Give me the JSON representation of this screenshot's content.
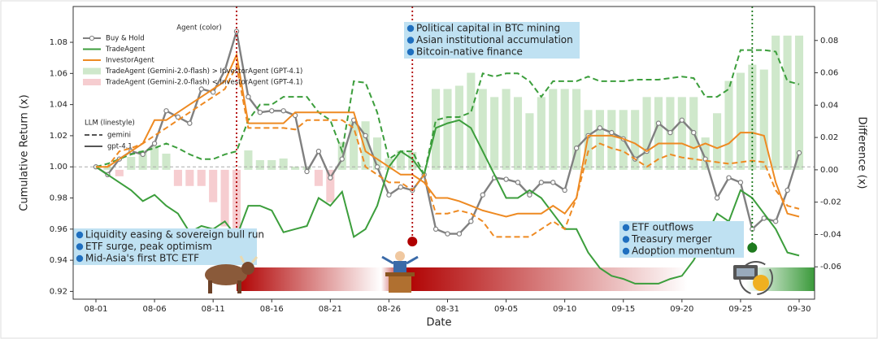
{
  "chart_data": {
    "type": "line",
    "x_label": "Date",
    "y_label": "Cumulative Return (x)",
    "y2_label": "Difference (x)",
    "x": [
      "08-01",
      "08-02",
      "08-03",
      "08-04",
      "08-05",
      "08-06",
      "08-07",
      "08-08",
      "08-09",
      "08-10",
      "08-11",
      "08-12",
      "08-13",
      "08-14",
      "08-15",
      "08-16",
      "08-17",
      "08-18",
      "08-19",
      "08-20",
      "08-21",
      "08-22",
      "08-23",
      "08-24",
      "08-25",
      "08-26",
      "08-27",
      "08-28",
      "08-29",
      "08-30",
      "08-31",
      "09-01",
      "09-02",
      "09-03",
      "09-04",
      "09-05",
      "09-06",
      "09-07",
      "09-08",
      "09-09",
      "09-10",
      "09-11",
      "09-12",
      "09-13",
      "09-14",
      "09-15",
      "09-16",
      "09-17",
      "09-18",
      "09-19",
      "09-20",
      "09-21",
      "09-22",
      "09-23",
      "09-24",
      "09-25",
      "09-26",
      "09-27",
      "09-28",
      "09-29",
      "09-30"
    ],
    "xticks": [
      "08-01",
      "08-06",
      "08-11",
      "08-16",
      "08-21",
      "08-26",
      "08-31",
      "09-05",
      "09-10",
      "09-15",
      "09-20",
      "09-25",
      "09-30"
    ],
    "ylim": [
      0.915,
      1.103
    ],
    "yticks": [
      0.92,
      0.94,
      0.96,
      0.98,
      {
        "value": 1,
        "label": "1.00"
      },
      1.02,
      1.04,
      1.06,
      1.08
    ],
    "y2lim": [
      -0.08,
      0.101
    ],
    "y2ticks": [
      -0.06,
      -0.04,
      -0.02,
      {
        "value": 0,
        "label": "0.00"
      },
      0.02,
      0.04,
      0.06,
      0.08
    ],
    "reference_line": 1,
    "legend": {
      "agent_title": "Agent (color)",
      "llm_title": "LLM (linestyle)"
    },
    "linestyles": [
      {
        "name": "gemini",
        "dash": "dashed"
      },
      {
        "name": "gpt-4.1",
        "dash": "solid"
      }
    ],
    "series": [
      {
        "name": "Buy & Hold",
        "color": "#808080",
        "marker": "o",
        "values": [
          1.0,
          0.995,
          1.005,
          1.01,
          1.008,
          1.015,
          1.036,
          1.032,
          1.028,
          1.05,
          1.048,
          1.062,
          1.087,
          1.045,
          1.035,
          1.036,
          1.036,
          1.033,
          0.997,
          1.01,
          0.993,
          1.005,
          1.03,
          1.02,
          1.0,
          0.982,
          0.987,
          0.985,
          0.995,
          0.96,
          0.957,
          0.957,
          0.965,
          0.982,
          0.993,
          0.992,
          0.99,
          0.982,
          0.99,
          0.99,
          0.985,
          1.012,
          1.02,
          1.025,
          1.022,
          1.018,
          1.005,
          1.01,
          1.028,
          1.022,
          1.03,
          1.022,
          1.005,
          0.98,
          0.993,
          0.99,
          0.96,
          0.967,
          0.965,
          0.985,
          1.009
        ]
      },
      {
        "name": "TradeAgent",
        "linestyle": "gemini",
        "color": "#3c9e3c",
        "values": [
          1.0,
          1.002,
          1.005,
          1.008,
          1.01,
          1.012,
          1.015,
          1.012,
          1.008,
          1.005,
          1.005,
          1.008,
          1.01,
          1.03,
          1.04,
          1.04,
          1.045,
          1.045,
          1.045,
          1.035,
          1.03,
          1.01,
          1.055,
          1.054,
          1.035,
          1.005,
          1.01,
          1.01,
          0.995,
          1.03,
          1.032,
          1.032,
          1.035,
          1.06,
          1.058,
          1.06,
          1.06,
          1.055,
          1.045,
          1.055,
          1.055,
          1.055,
          1.058,
          1.055,
          1.055,
          1.055,
          1.056,
          1.056,
          1.056,
          1.057,
          1.058,
          1.057,
          1.045,
          1.045,
          1.05,
          1.075,
          1.075,
          1.075,
          1.074,
          1.055,
          1.053
        ]
      },
      {
        "name": "TradeAgent",
        "linestyle": "gpt-4.1",
        "color": "#3c9e3c",
        "values": [
          1.0,
          0.995,
          0.99,
          0.985,
          0.978,
          0.982,
          0.975,
          0.97,
          0.958,
          0.962,
          0.96,
          0.965,
          0.955,
          0.975,
          0.975,
          0.972,
          0.958,
          0.96,
          0.962,
          0.98,
          0.975,
          0.984,
          0.955,
          0.96,
          0.975,
          1.0,
          1.01,
          1.005,
          0.995,
          1.025,
          1.028,
          1.03,
          1.025,
          1.01,
          0.995,
          0.98,
          0.98,
          0.985,
          0.98,
          0.97,
          0.96,
          0.96,
          0.945,
          0.935,
          0.93,
          0.928,
          0.925,
          0.925,
          0.925,
          0.928,
          0.93,
          0.94,
          0.955,
          0.97,
          0.965,
          0.985,
          0.98,
          0.97,
          0.96,
          0.945,
          0.943
        ]
      },
      {
        "name": "InvestorAgent",
        "linestyle": "gemini",
        "color": "#ee8a22",
        "values": [
          1.0,
          1.0,
          1.01,
          1.012,
          1.015,
          1.02,
          1.025,
          1.03,
          1.035,
          1.04,
          1.045,
          1.05,
          1.065,
          1.025,
          1.025,
          1.025,
          1.025,
          1.024,
          1.03,
          1.03,
          1.03,
          1.03,
          1.025,
          1.0,
          0.995,
          0.99,
          0.99,
          0.985,
          0.995,
          0.97,
          0.97,
          0.972,
          0.97,
          0.965,
          0.955,
          0.955,
          0.955,
          0.955,
          0.96,
          0.965,
          0.96,
          0.98,
          1.01,
          1.015,
          1.012,
          1.01,
          1.005,
          1.0,
          1.005,
          1.008,
          1.006,
          1.005,
          1.004,
          1.003,
          1.002,
          1.003,
          1.004,
          1.003,
          0.985,
          0.975,
          0.973
        ]
      },
      {
        "name": "InvestorAgent",
        "linestyle": "gpt-4.1",
        "color": "#ee8a22",
        "values": [
          1.0,
          1.0,
          1.005,
          1.01,
          1.015,
          1.03,
          1.03,
          1.035,
          1.04,
          1.045,
          1.05,
          1.055,
          1.072,
          1.028,
          1.028,
          1.028,
          1.028,
          1.035,
          1.035,
          1.035,
          1.035,
          1.035,
          1.035,
          1.01,
          1.005,
          1.0,
          0.995,
          0.995,
          0.99,
          0.98,
          0.98,
          0.978,
          0.975,
          0.972,
          0.97,
          0.968,
          0.97,
          0.97,
          0.97,
          0.975,
          0.97,
          0.98,
          1.02,
          1.02,
          1.02,
          1.018,
          1.015,
          1.01,
          1.015,
          1.015,
          1.015,
          1.012,
          1.015,
          1.012,
          1.015,
          1.022,
          1.022,
          1.02,
          0.99,
          0.97,
          0.968
        ]
      },
      {
        "name": "TradeAgent (Gemini-2.0-flash) > InvestorAgent (GPT-4.1)",
        "type": "bar",
        "axis": "y2",
        "color": "#cfe8cb",
        "values": [
          null,
          0.002,
          null,
          0.008,
          0.012,
          0.015,
          0.01,
          null,
          null,
          null,
          null,
          null,
          null,
          0.012,
          0.006,
          0.006,
          0.007,
          0.002,
          0.002,
          null,
          null,
          0.017,
          0.03,
          0.03,
          0.02,
          0.007,
          0.012,
          0.011,
          null,
          0.05,
          0.05,
          0.052,
          0.06,
          0.05,
          0.045,
          0.05,
          0.045,
          0.035,
          0.045,
          0.05,
          0.05,
          0.05,
          0.037,
          0.037,
          0.037,
          0.037,
          0.037,
          0.045,
          0.045,
          0.045,
          0.045,
          0.045,
          0.02,
          0.035,
          0.055,
          0.06,
          0.065,
          0.062,
          0.083,
          0.083,
          0.083
        ]
      },
      {
        "name": "TradeAgent (Gemini-2.0-flash) < InvestorAgent (GPT-4.1)",
        "type": "bar",
        "axis": "y2",
        "color": "#f6cdd0",
        "values": [
          null,
          null,
          -0.004,
          null,
          null,
          null,
          null,
          -0.01,
          -0.01,
          -0.01,
          -0.02,
          -0.035,
          -0.04,
          null,
          null,
          null,
          null,
          null,
          null,
          -0.01,
          -0.02,
          null,
          null,
          null,
          null,
          null,
          null,
          null,
          null,
          null,
          null,
          null,
          null,
          null,
          null,
          null,
          null,
          null,
          null,
          null,
          null,
          null,
          null,
          null,
          null,
          null,
          null,
          null,
          null,
          null,
          null,
          null,
          null,
          null,
          null,
          null,
          null,
          null,
          null,
          null,
          null
        ]
      }
    ],
    "events": [
      {
        "x": "08-13",
        "y": 0.946,
        "color": "#b00000",
        "lines": [
          "Liquidity easing & sovereign bull run",
          "ETF surge, peak optimism",
          "Mid-Asia's first BTC ETF"
        ]
      },
      {
        "x": "08-28",
        "y": 0.952,
        "color": "#b00000",
        "lines": [
          "Political capital in BTC mining",
          "Asian institutional accumulation",
          "Bitcoin-native finance"
        ]
      },
      {
        "x": "09-26",
        "y": 0.948,
        "color": "#1e7a1e",
        "lines": [
          "ETF outflows",
          "Treasury merger",
          "Adoption momentum"
        ]
      }
    ]
  }
}
